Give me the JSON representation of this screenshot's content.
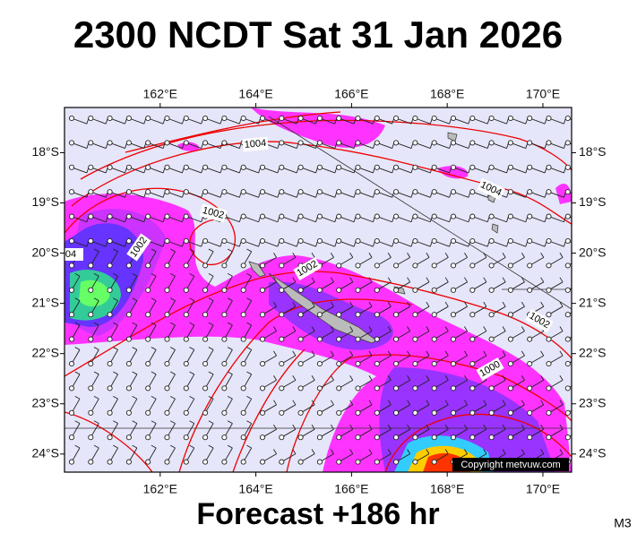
{
  "header": {
    "title": "2300 NCDT Sat 31 Jan 2026"
  },
  "map": {
    "lonlim": [
      160,
      170.6
    ],
    "latlim": [
      17.1,
      24.36
    ],
    "lon_ticks": [
      {
        "value": 162,
        "label": "162°E"
      },
      {
        "value": 164,
        "label": "164°E"
      },
      {
        "value": 166,
        "label": "166°E"
      },
      {
        "value": 168,
        "label": "168°E"
      },
      {
        "value": 170,
        "label": "170°E"
      }
    ],
    "lat_ticks": [
      {
        "value": 18,
        "label": "18°S"
      },
      {
        "value": 19,
        "label": "19°S"
      },
      {
        "value": 20,
        "label": "20°S"
      },
      {
        "value": 21,
        "label": "21°S"
      },
      {
        "value": 22,
        "label": "22°S"
      },
      {
        "value": 23,
        "label": "23°S"
      },
      {
        "value": 24,
        "label": "24°S"
      }
    ],
    "isobar_labels": [
      "1004",
      "1002",
      "1002",
      "04",
      "1002",
      "1004",
      "1002",
      "1000"
    ],
    "copyright": "Copyright metvuw.com"
  },
  "footer": {
    "forecast": "Forecast +186 hr",
    "model": "M3"
  }
}
